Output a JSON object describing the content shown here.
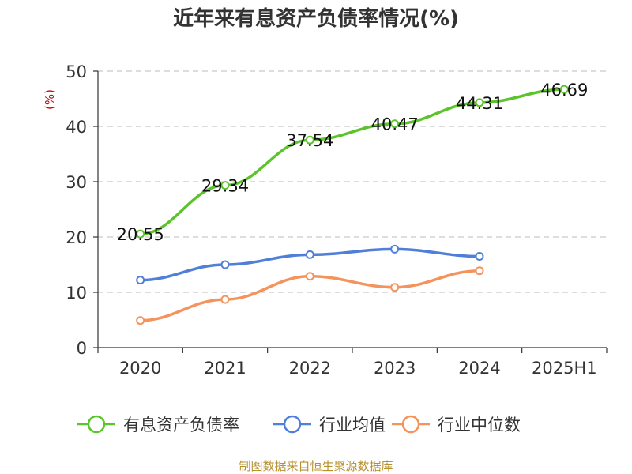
{
  "chart_data": {
    "type": "line",
    "title": "近年来有息资产负债率情况(%)",
    "ylabel": "(%)",
    "xlabel": "",
    "ylim": [
      0,
      50
    ],
    "yticks": [
      "0",
      "10",
      "20",
      "30",
      "40",
      "50"
    ],
    "categories": [
      "2020",
      "2021",
      "2022",
      "2023",
      "2024",
      "2025H1"
    ],
    "grid": true,
    "legend_position": "bottom",
    "series": [
      {
        "name": "有息资产负债率",
        "color": "#5ac42a",
        "values": [
          20.55,
          29.34,
          37.54,
          40.47,
          44.31,
          46.69
        ],
        "labels": [
          "20.55",
          "29.34",
          "37.54",
          "40.47",
          "44.31",
          "46.69"
        ]
      },
      {
        "name": "行业均值",
        "color": "#4f7fd8",
        "values": [
          12.2,
          15.0,
          16.8,
          17.8,
          16.5,
          null
        ]
      },
      {
        "name": "行业中位数",
        "color": "#f4935c",
        "values": [
          4.9,
          8.7,
          12.9,
          10.9,
          13.9,
          null
        ]
      }
    ]
  },
  "source": "制图数据来自恒生聚源数据库"
}
